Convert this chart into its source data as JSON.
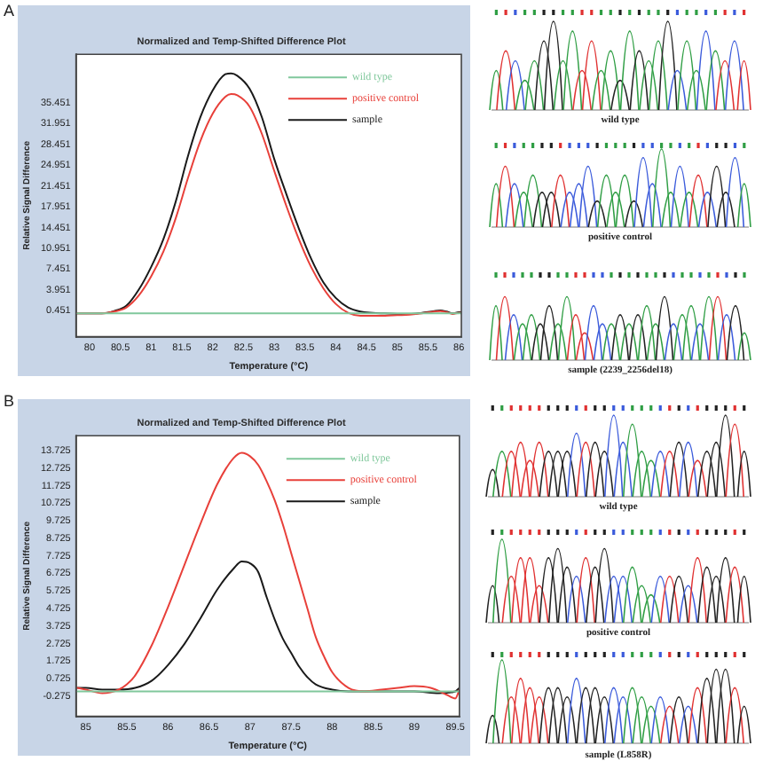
{
  "chart_data": [
    {
      "type": "line",
      "title": "Normalized and Temp-Shifted Difference Plot",
      "xlabel": "Temperature (°C)",
      "ylabel": "Relative Signal Difference",
      "xlim": [
        79.78,
        86.04
      ],
      "ylim": [
        -3.92,
        43.6
      ],
      "xticks": [
        80,
        80.5,
        81,
        81.5,
        82,
        82.5,
        83,
        83.5,
        84,
        84.5,
        85,
        85.5,
        86
      ],
      "yticks": [
        0.451,
        3.951,
        7.451,
        10.951,
        14.451,
        17.951,
        21.451,
        24.951,
        28.451,
        31.951,
        35.451
      ],
      "legend": "top right",
      "annotations": [
        "A",
        "wild type",
        "positive control",
        "sample (2239_2256del18)"
      ],
      "series": [
        {
          "name": "wild type",
          "color": "#80c89c",
          "x": [
            79.8,
            86.04
          ],
          "values": [
            0,
            0
          ]
        },
        {
          "name": "positive control",
          "color": "#e8403a",
          "x": [
            79.8,
            80,
            80.2,
            80.4,
            80.6,
            80.8,
            81,
            81.2,
            81.4,
            81.6,
            81.8,
            82,
            82.2,
            82.3,
            82.4,
            82.6,
            82.8,
            83,
            83.2,
            83.4,
            83.6,
            83.8,
            84,
            84.2,
            84.4,
            84.6,
            84.8,
            85,
            85.2,
            85.4,
            85.6,
            85.7,
            85.8,
            85.9,
            86,
            86.04
          ],
          "values": [
            0,
            0,
            0,
            0.3,
            1,
            3,
            6.2,
            10.4,
            16,
            22.8,
            29,
            33.6,
            36.4,
            36.9,
            36.7,
            34.8,
            30.2,
            24,
            18,
            12.5,
            7.8,
            4.2,
            1.6,
            0.1,
            -0.4,
            -0.4,
            -0.4,
            -0.3,
            -0.2,
            0,
            0.3,
            0.4,
            0.2,
            -0.1,
            0.1,
            0.1
          ]
        },
        {
          "name": "sample",
          "color": "#1a1a1a",
          "x": [
            79.8,
            80,
            80.2,
            80.4,
            80.6,
            80.8,
            81,
            81.2,
            81.4,
            81.6,
            81.8,
            82,
            82.2,
            82.3,
            82.4,
            82.6,
            82.8,
            83,
            83.2,
            83.4,
            83.6,
            83.8,
            84,
            84.2,
            84.4,
            84.6,
            84.8,
            85,
            85.2,
            85.4,
            85.6,
            85.7,
            85.8,
            85.9,
            86,
            86.04
          ],
          "values": [
            0,
            0,
            0,
            0.4,
            1.3,
            4,
            7.8,
            12.5,
            18.8,
            26.5,
            33,
            37.5,
            40.2,
            40.4,
            40,
            37.8,
            33,
            26,
            20,
            14.3,
            9.2,
            5.2,
            2.6,
            1,
            0.3,
            0.1,
            0,
            -0.1,
            -0.1,
            0.1,
            0.4,
            0.5,
            0.3,
            0,
            0.2,
            0.2
          ]
        }
      ]
    },
    {
      "type": "line",
      "title": "Normalized and Temp-Shifted Difference Plot",
      "xlabel": "Temperature (°C)",
      "ylabel": "Relative Signal Difference",
      "xlim": [
        84.88,
        89.55
      ],
      "ylim": [
        -1.42,
        14.57
      ],
      "xticks": [
        85,
        85.5,
        86,
        86.5,
        87,
        87.5,
        88,
        88.5,
        89,
        89.5
      ],
      "yticks": [
        -0.275,
        0.725,
        1.725,
        2.725,
        3.725,
        4.725,
        5.725,
        6.725,
        7.725,
        8.725,
        9.725,
        10.725,
        11.725,
        12.725,
        13.725
      ],
      "legend": "top right",
      "annotations": [
        "B",
        "wild type",
        "positive control",
        "sample (L858R)"
      ],
      "series": [
        {
          "name": "wild type",
          "color": "#80c89c",
          "x": [
            84.9,
            89.55
          ],
          "values": [
            0,
            0
          ]
        },
        {
          "name": "positive control",
          "color": "#e8403a",
          "x": [
            84.9,
            85,
            85.2,
            85.4,
            85.5,
            85.6,
            85.8,
            86,
            86.2,
            86.4,
            86.6,
            86.8,
            86.9,
            87,
            87.1,
            87.2,
            87.3,
            87.4,
            87.5,
            87.6,
            87.7,
            87.8,
            87.9,
            88,
            88.2,
            88.4,
            88.6,
            88.8,
            89,
            89.2,
            89.4,
            89.5,
            89.55
          ],
          "values": [
            0.2,
            0.1,
            -0.1,
            0.1,
            0.4,
            0.9,
            2.6,
            4.8,
            7.2,
            9.6,
            11.8,
            13.3,
            13.6,
            13.4,
            12.9,
            12,
            10.9,
            9.5,
            7.9,
            6.3,
            4.7,
            3.1,
            2,
            1.1,
            0.2,
            0,
            0.1,
            0.2,
            0.3,
            0.2,
            -0.2,
            -0.4,
            0.1
          ]
        },
        {
          "name": "sample",
          "color": "#1a1a1a",
          "x": [
            84.9,
            85,
            85.2,
            85.4,
            85.6,
            85.8,
            86,
            86.2,
            86.4,
            86.6,
            86.8,
            86.9,
            87,
            87.1,
            87.2,
            87.3,
            87.4,
            87.5,
            87.6,
            87.7,
            87.8,
            88,
            88.2,
            88.5,
            89,
            89.3,
            89.5,
            89.55
          ],
          "values": [
            0.2,
            0.2,
            0.1,
            0.1,
            0.2,
            0.6,
            1.5,
            2.7,
            4.2,
            5.8,
            7,
            7.4,
            7.3,
            6.8,
            5.4,
            4.1,
            3,
            2.2,
            1.4,
            0.8,
            0.4,
            0.1,
            0,
            0,
            0,
            -0.1,
            0,
            0.2
          ]
        }
      ]
    }
  ]
}
